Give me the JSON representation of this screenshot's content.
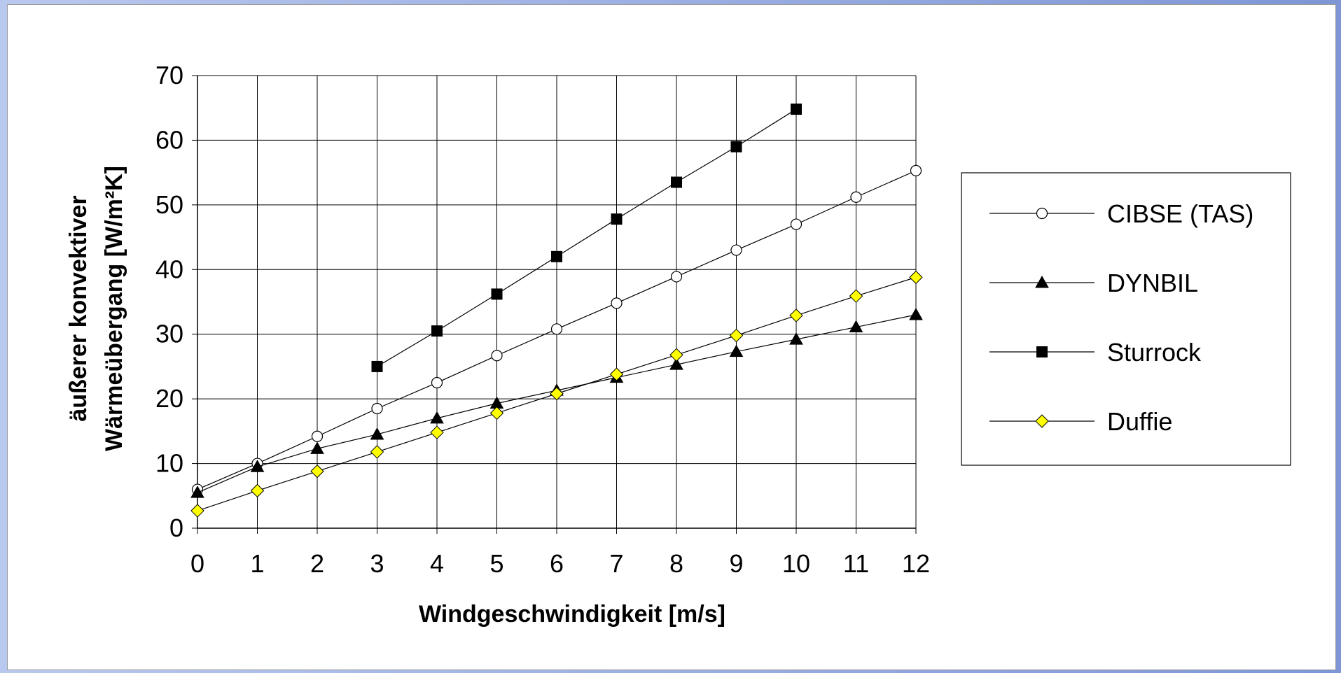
{
  "chart_data": {
    "type": "line",
    "title": "",
    "xlabel": "Windgeschwindigkeit   [m/s]",
    "ylabel_line1": "äußerer konvektiver",
    "ylabel_line2": "Wärmeübergang  [W/m²K]",
    "xlim": [
      0,
      12
    ],
    "ylim": [
      0,
      70
    ],
    "x_ticks": [
      0,
      1,
      2,
      3,
      4,
      5,
      6,
      7,
      8,
      9,
      10,
      11,
      12
    ],
    "y_ticks": [
      0,
      10,
      20,
      30,
      40,
      50,
      60,
      70
    ],
    "grid": true,
    "legend_position": "right",
    "series": [
      {
        "name": "CIBSE (TAS)",
        "marker": "circle-open",
        "marker_fill": "#ffffff",
        "x": [
          0,
          1,
          2,
          3,
          4,
          5,
          6,
          7,
          8,
          9,
          10,
          11,
          12
        ],
        "values": [
          6.0,
          10.0,
          14.2,
          18.5,
          22.5,
          26.7,
          30.8,
          34.8,
          38.9,
          43.0,
          47.0,
          51.2,
          55.3
        ]
      },
      {
        "name": "DYNBIL",
        "marker": "triangle",
        "marker_fill": "#000000",
        "x": [
          0,
          1,
          2,
          3,
          4,
          5,
          6,
          7,
          8,
          9,
          10,
          11,
          12
        ],
        "values": [
          5.5,
          9.5,
          12.3,
          14.5,
          17.0,
          19.3,
          21.3,
          23.3,
          25.3,
          27.3,
          29.2,
          31.1,
          33.0
        ]
      },
      {
        "name": "Sturrock",
        "marker": "square",
        "marker_fill": "#000000",
        "x": [
          3,
          4,
          5,
          6,
          7,
          8,
          9,
          10
        ],
        "values": [
          25.0,
          30.5,
          36.2,
          42.0,
          47.8,
          53.5,
          59.0,
          64.8
        ]
      },
      {
        "name": "Duffie",
        "marker": "diamond",
        "marker_fill": "#ffff00",
        "x": [
          0,
          1,
          2,
          3,
          4,
          5,
          6,
          7,
          8,
          9,
          10,
          11,
          12
        ],
        "values": [
          2.7,
          5.8,
          8.8,
          11.8,
          14.8,
          17.8,
          20.8,
          23.8,
          26.8,
          29.8,
          32.9,
          35.9,
          38.8
        ]
      }
    ]
  }
}
